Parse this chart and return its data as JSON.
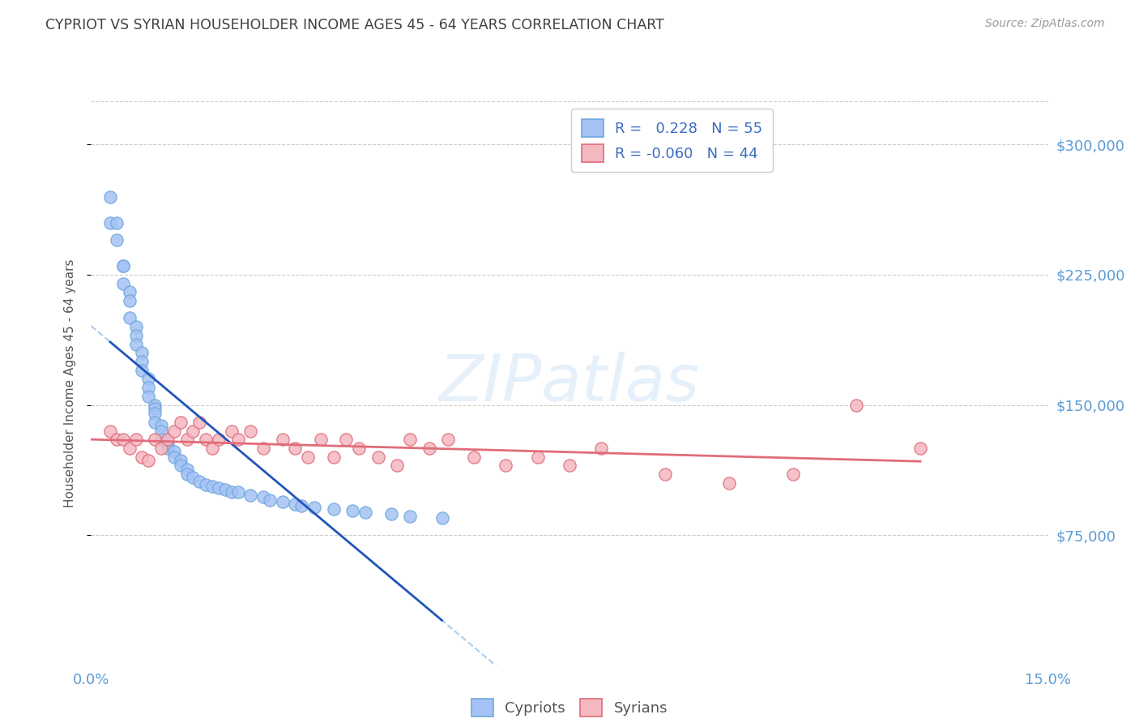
{
  "title": "CYPRIOT VS SYRIAN HOUSEHOLDER INCOME AGES 45 - 64 YEARS CORRELATION CHART",
  "source": "Source: ZipAtlas.com",
  "ylabel": "Householder Income Ages 45 - 64 years",
  "ytick_labels": [
    "$75,000",
    "$150,000",
    "$225,000",
    "$300,000"
  ],
  "ytick_values": [
    75000,
    150000,
    225000,
    300000
  ],
  "ylim": [
    0,
    325000
  ],
  "xlim": [
    0.0,
    0.15
  ],
  "legend_cypriot_R": "0.228",
  "legend_cypriot_N": "55",
  "legend_syrian_R": "-0.060",
  "legend_syrian_N": "44",
  "cypriot_color": "#6fa8dc",
  "cypriot_fill": "#a4c2f4",
  "syrian_color": "#e06c7a",
  "syrian_fill": "#f4b8c1",
  "trend_cypriot_color": "#2255bb",
  "trend_syrian_color": "#e06c7a",
  "trend_dashed_color": "#aaccee",
  "background_color": "#ffffff",
  "grid_color": "#cccccc",
  "title_color": "#404040",
  "axis_label_color": "#555555",
  "tick_color": "#5b9bd5",
  "cypriot_x": [
    0.003,
    0.003,
    0.004,
    0.004,
    0.005,
    0.005,
    0.005,
    0.006,
    0.006,
    0.006,
    0.007,
    0.007,
    0.007,
    0.008,
    0.008,
    0.008,
    0.009,
    0.009,
    0.009,
    0.01,
    0.01,
    0.01,
    0.01,
    0.011,
    0.011,
    0.011,
    0.012,
    0.012,
    0.013,
    0.013,
    0.014,
    0.014,
    0.015,
    0.015,
    0.016,
    0.017,
    0.018,
    0.019,
    0.02,
    0.021,
    0.022,
    0.023,
    0.025,
    0.027,
    0.028,
    0.03,
    0.032,
    0.033,
    0.035,
    0.038,
    0.041,
    0.043,
    0.047,
    0.05,
    0.055
  ],
  "cypriot_y": [
    270000,
    255000,
    255000,
    245000,
    230000,
    230000,
    220000,
    215000,
    210000,
    200000,
    195000,
    190000,
    185000,
    180000,
    175000,
    170000,
    165000,
    160000,
    155000,
    150000,
    148000,
    145000,
    140000,
    138000,
    135000,
    130000,
    128000,
    125000,
    123000,
    120000,
    118000,
    115000,
    113000,
    110000,
    108000,
    106000,
    104000,
    103000,
    102000,
    101000,
    100000,
    100000,
    98000,
    97000,
    95000,
    94000,
    93000,
    92000,
    91000,
    90000,
    89000,
    88000,
    87000,
    86000,
    85000
  ],
  "syrian_x": [
    0.003,
    0.004,
    0.005,
    0.006,
    0.007,
    0.008,
    0.009,
    0.01,
    0.011,
    0.012,
    0.013,
    0.014,
    0.015,
    0.016,
    0.017,
    0.018,
    0.019,
    0.02,
    0.022,
    0.023,
    0.025,
    0.027,
    0.03,
    0.032,
    0.034,
    0.036,
    0.038,
    0.04,
    0.042,
    0.045,
    0.048,
    0.05,
    0.053,
    0.056,
    0.06,
    0.065,
    0.07,
    0.075,
    0.08,
    0.09,
    0.1,
    0.11,
    0.12,
    0.13
  ],
  "syrian_y": [
    135000,
    130000,
    130000,
    125000,
    130000,
    120000,
    118000,
    130000,
    125000,
    130000,
    135000,
    140000,
    130000,
    135000,
    140000,
    130000,
    125000,
    130000,
    135000,
    130000,
    135000,
    125000,
    130000,
    125000,
    120000,
    130000,
    120000,
    130000,
    125000,
    120000,
    115000,
    130000,
    125000,
    130000,
    120000,
    115000,
    120000,
    115000,
    125000,
    110000,
    105000,
    110000,
    150000,
    125000
  ]
}
